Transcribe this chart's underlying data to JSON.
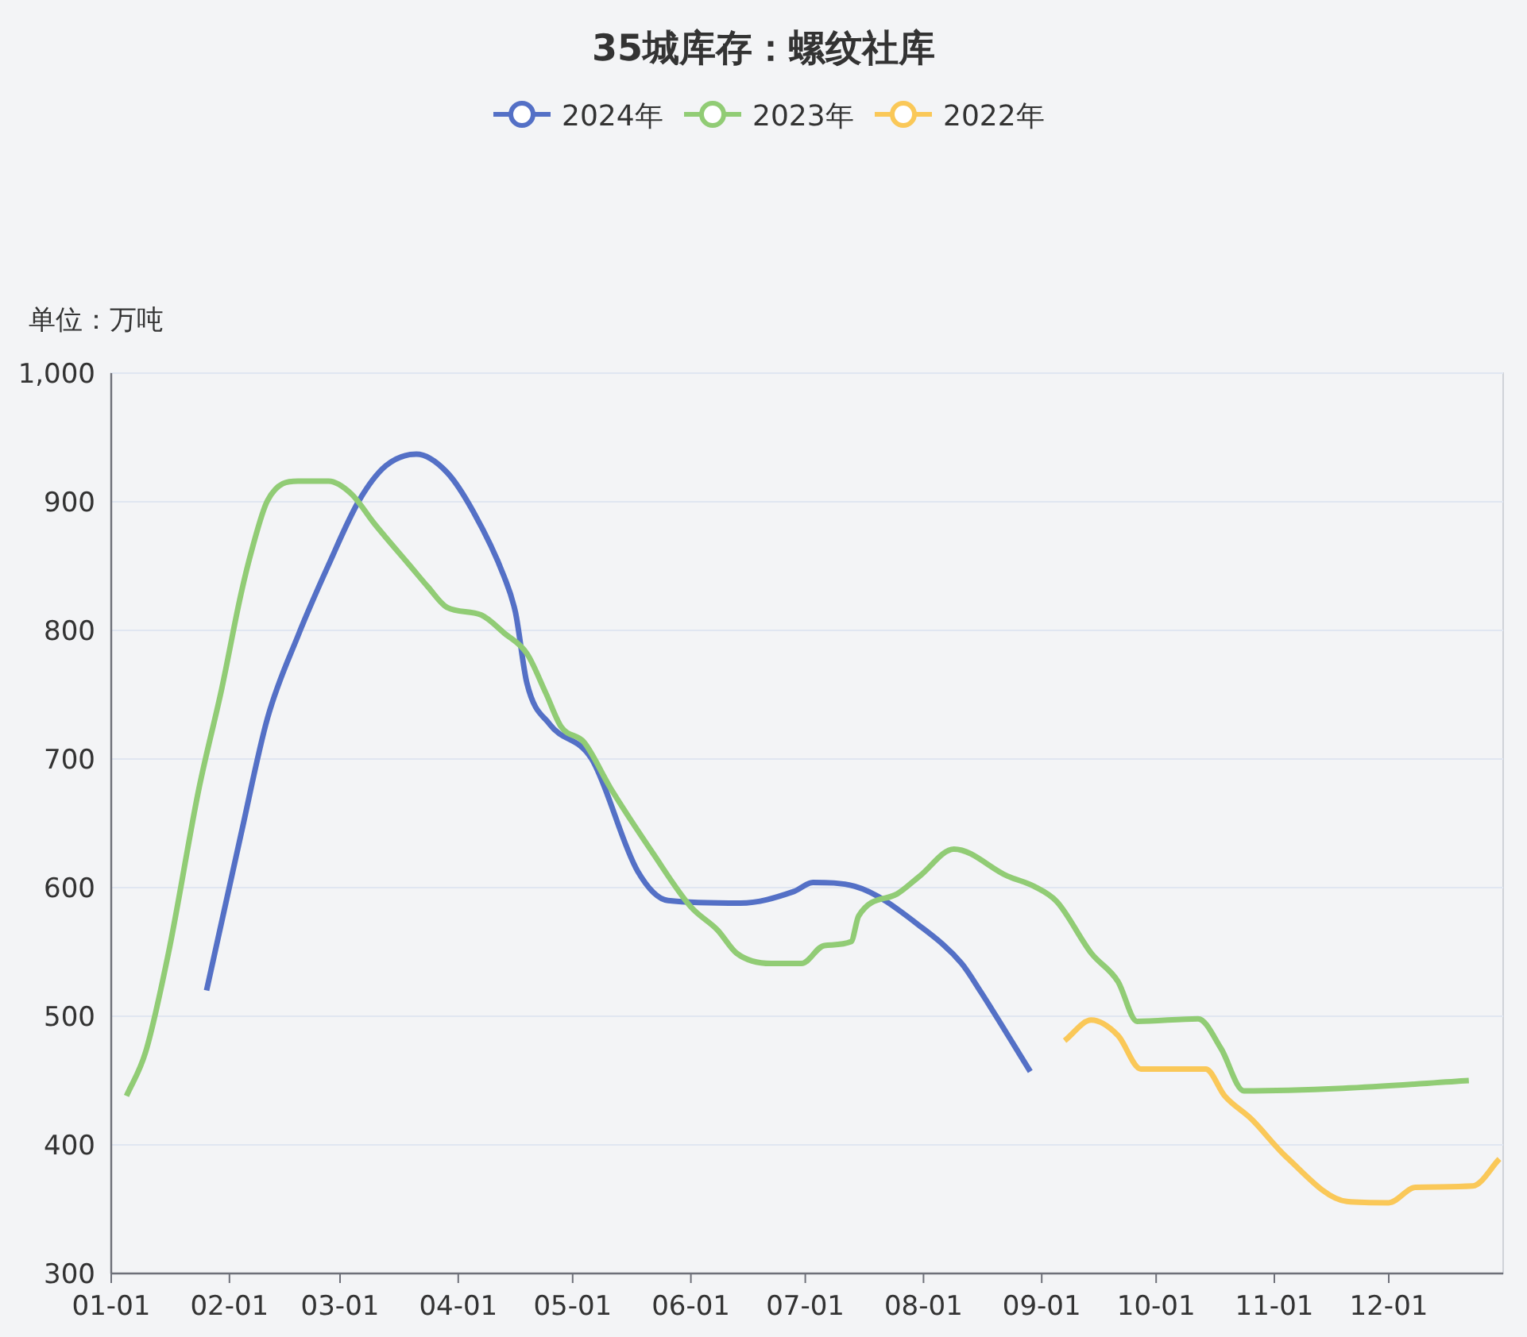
{
  "chart_data": {
    "type": "line",
    "title": "35城库存：螺纹社库",
    "ylabel": "单位：万吨",
    "xlim": [
      "--01-01",
      "--12-31"
    ],
    "xticks": [
      {
        "value": "--01-01",
        "label": "01-01"
      },
      {
        "value": "--02-01",
        "label": "02-01"
      },
      {
        "value": "--03-01",
        "label": "03-01"
      },
      {
        "value": "--04-01",
        "label": "04-01"
      },
      {
        "value": "--05-01",
        "label": "05-01"
      },
      {
        "value": "--06-01",
        "label": "06-01"
      },
      {
        "value": "--07-01",
        "label": "07-01"
      },
      {
        "value": "--08-01",
        "label": "08-01"
      },
      {
        "value": "--09-01",
        "label": "09-01"
      },
      {
        "value": "--10-01",
        "label": "10-01"
      },
      {
        "value": "--11-01",
        "label": "11-01"
      },
      {
        "value": "--12-01",
        "label": "12-01"
      }
    ],
    "ylim": [
      300,
      1000
    ],
    "yticks": [
      300,
      400,
      500,
      600,
      700,
      800,
      900,
      {
        "value": 1000,
        "label": "1,000"
      }
    ],
    "grid": "y",
    "legend": "top",
    "marker": "none",
    "line_style": "solid",
    "series": [
      {
        "name": "2024年",
        "color": "#5470c6",
        "x": [
          "--01-26",
          "--02-04",
          "--02-11",
          "--02-19",
          "--02-27",
          "--03-06",
          "--03-13",
          "--03-21",
          "--03-29",
          "--04-05",
          "--04-13",
          "--04-16",
          "--04-19",
          "--04-25",
          "--05-06",
          "--05-18",
          "--05-26",
          "--06-14",
          "--06-28",
          "--07-03",
          "--07-14",
          "--08-01",
          "--08-11",
          "--08-16",
          "--08-29"
        ],
        "values": [
          520,
          641,
          732,
          796,
          851,
          901,
          928,
          937,
          923,
          892,
          842,
          814,
          759,
          727,
          700,
          613,
          590,
          588,
          597,
          604,
          601,
          568,
          541,
          519,
          457
        ]
      },
      {
        "name": "2023年",
        "color": "#91cc75",
        "x": [
          "--01-05",
          "--01-10",
          "--01-16",
          "--01-24",
          "--01-30",
          "--02-04",
          "--02-07",
          "--02-11",
          "--02-19",
          "--02-27",
          "--03-04",
          "--03-10",
          "--03-20",
          "--03-24",
          "--03-29",
          "--04-07",
          "--04-13",
          "--04-19",
          "--04-24",
          "--04-28",
          "--05-04",
          "--05-11",
          "--05-22",
          "--06-01",
          "--06-08",
          "--06-13",
          "--06-22",
          "--06-30",
          "--07-06",
          "--07-13",
          "--07-15",
          "--07-25",
          "--07-31",
          "--08-09",
          "--08-23",
          "--08-30",
          "--09-05",
          "--09-14",
          "--09-21",
          "--09-26",
          "--10-12",
          "--10-18",
          "--10-24",
          "--11-19",
          "--12-22"
        ],
        "values": [
          438,
          472,
          549,
          677,
          755,
          828,
          864,
          901,
          916,
          916,
          906,
          883,
          848,
          834,
          818,
          812,
          798,
          782,
          751,
          725,
          713,
          677,
          627,
          585,
          567,
          549,
          541,
          541,
          555,
          558,
          578,
          595,
          609,
          630,
          609,
          601,
          589,
          549,
          527,
          496,
          498,
          475,
          442,
          444,
          450
        ]
      },
      {
        "name": "2022年",
        "color": "#fac858",
        "x": [
          "--09-07",
          "--09-14",
          "--09-21",
          "--09-27",
          "--10-14",
          "--10-19",
          "--10-26",
          "--11-04",
          "--11-20",
          "--12-01",
          "--12-08",
          "--12-23",
          "--12-30"
        ],
        "values": [
          481,
          497,
          485,
          459,
          459,
          438,
          420,
          391,
          356,
          355,
          367,
          368,
          389
        ]
      }
    ]
  }
}
